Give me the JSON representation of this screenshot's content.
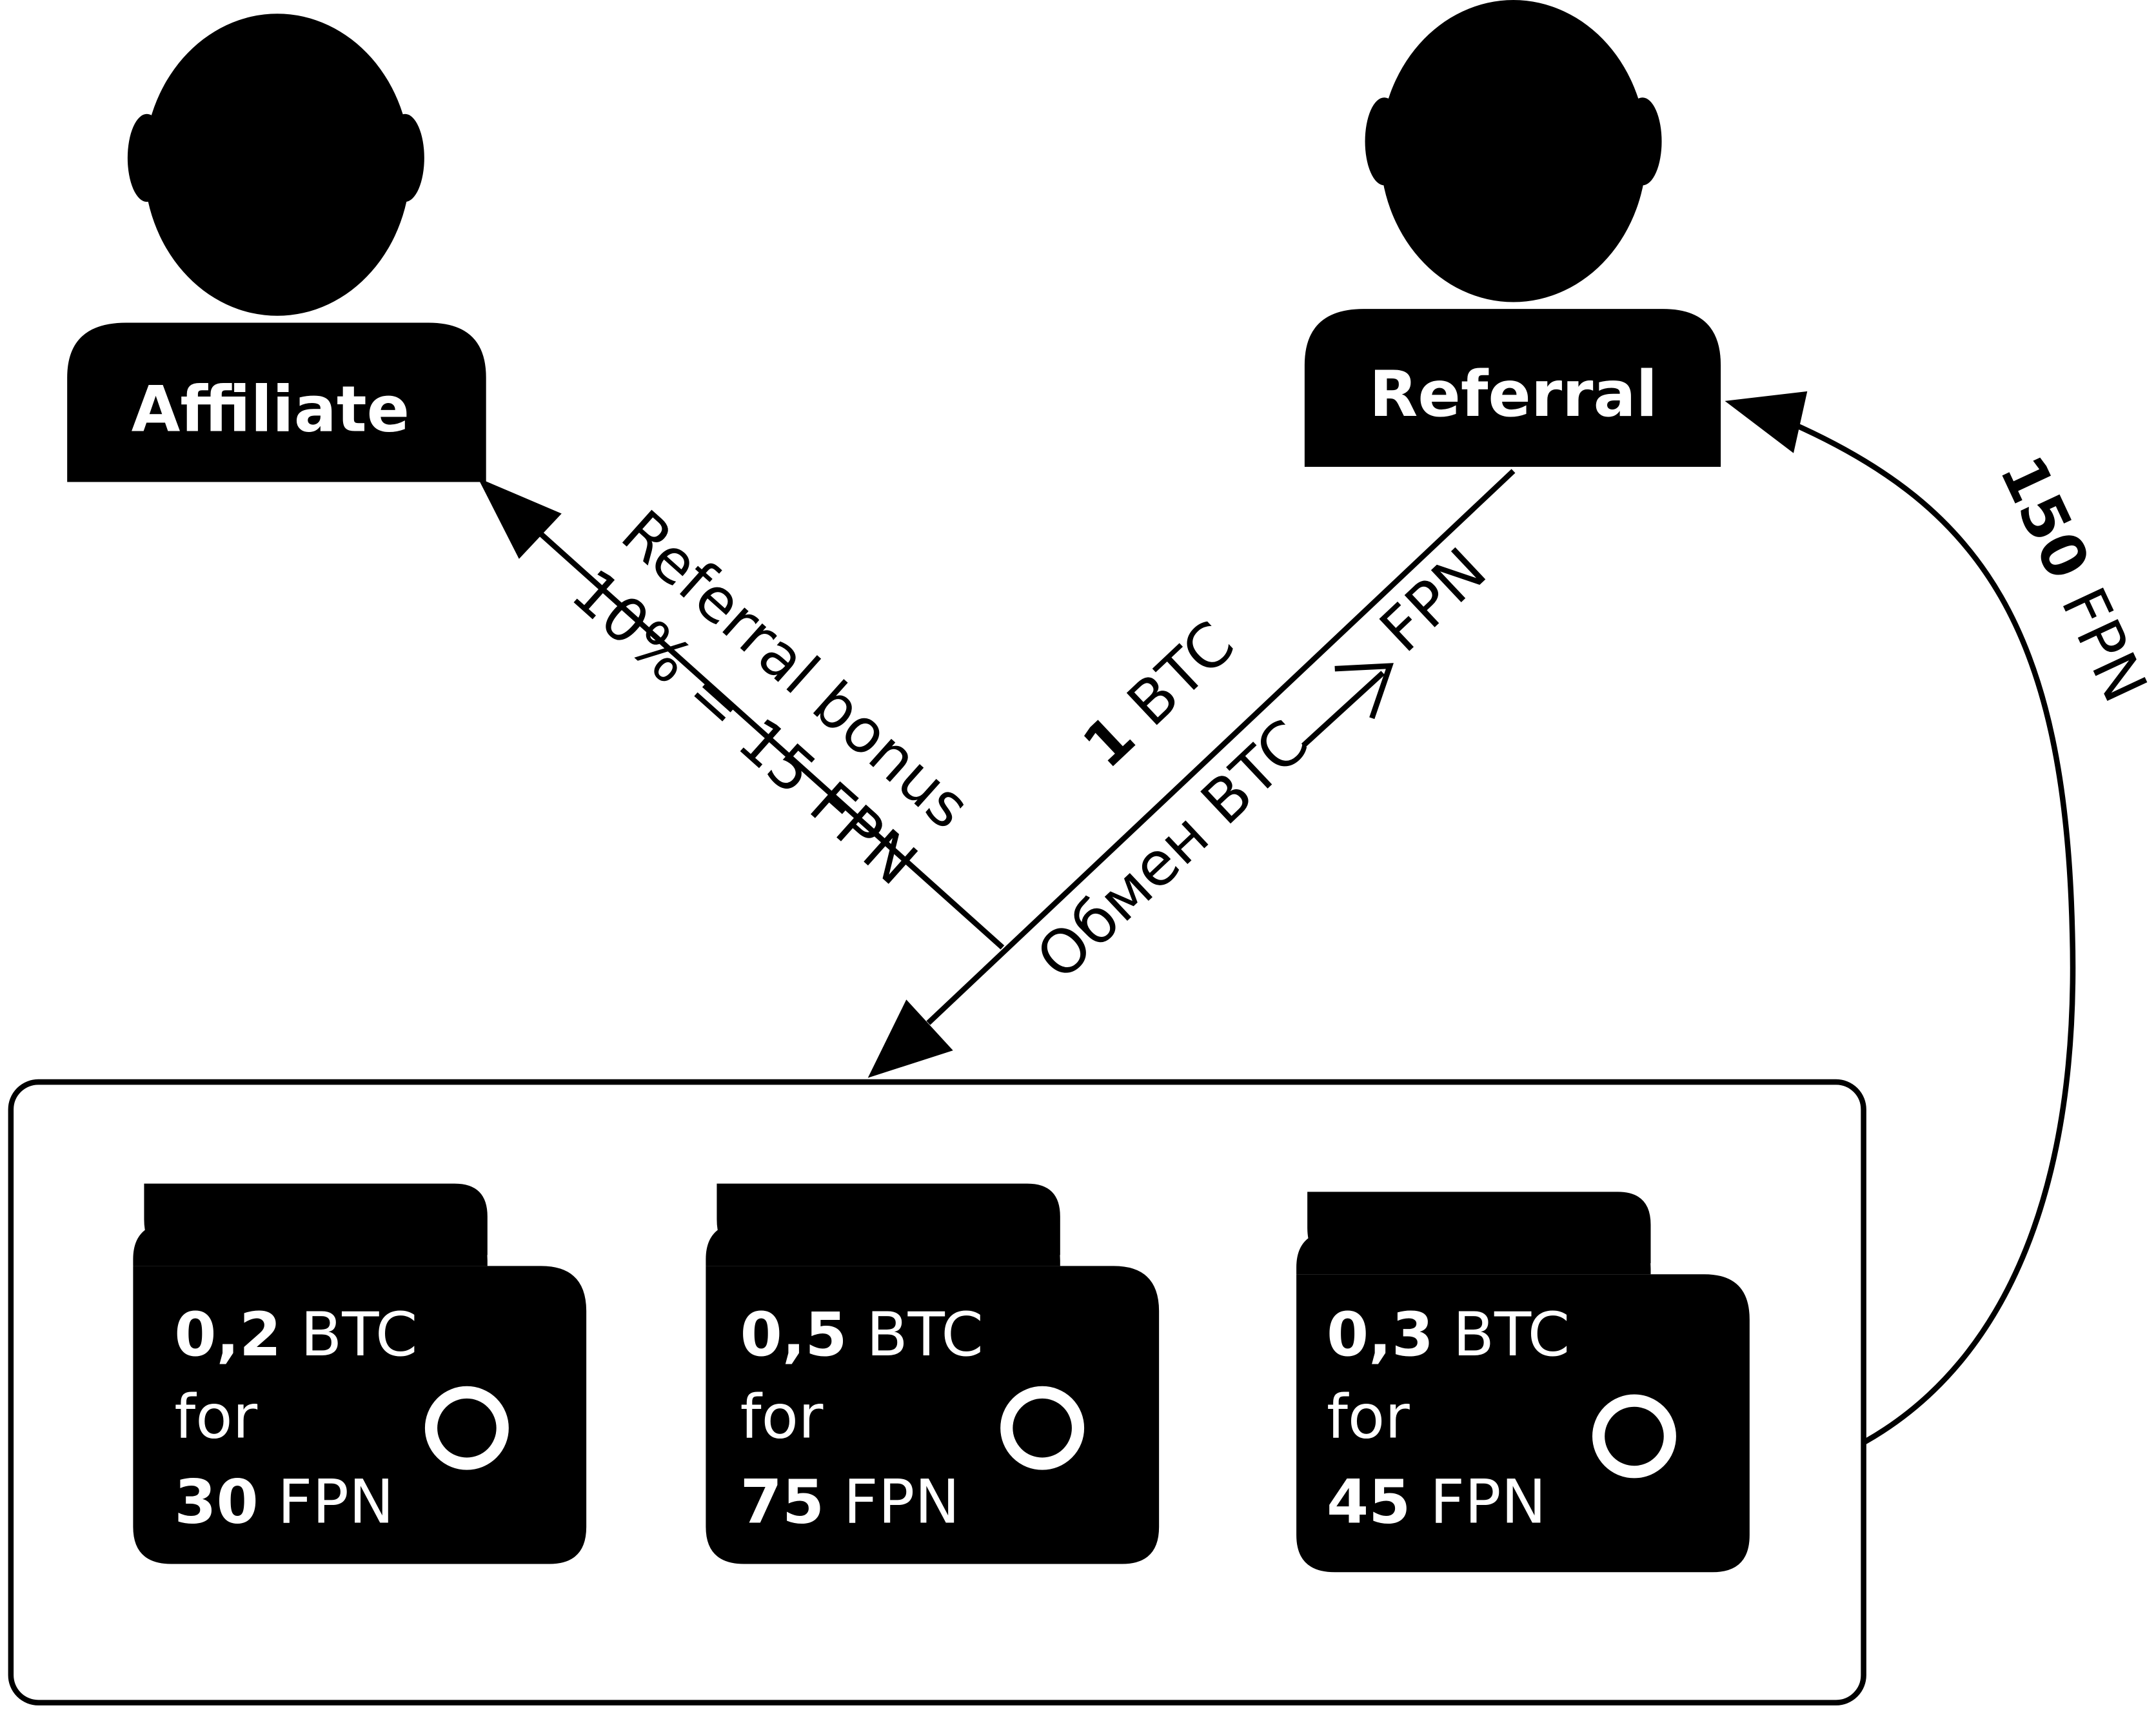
{
  "actors": {
    "affiliate": {
      "label": "Affiliate"
    },
    "referral": {
      "label": "Referral"
    }
  },
  "arrows": {
    "bonus": {
      "line1": "Referral bonus",
      "line2": "10% = 15 FPN"
    },
    "payment": {
      "amount": "1",
      "currency": "BTC",
      "exchange_prefix": "Обмен BTC",
      "exchange_suffix": "FPN"
    },
    "payout": {
      "amount": "150",
      "currency": "FPN"
    }
  },
  "wallets": [
    {
      "btc_amount": "0,2",
      "btc_unit": "BTC",
      "for_label": "for",
      "fpn_amount": "30",
      "fpn_unit": "FPN"
    },
    {
      "btc_amount": "0,5",
      "btc_unit": "BTC",
      "for_label": "for",
      "fpn_amount": "75",
      "fpn_unit": "FPN"
    },
    {
      "btc_amount": "0,3",
      "btc_unit": "BTC",
      "for_label": "for",
      "fpn_amount": "45",
      "fpn_unit": "FPN"
    }
  ],
  "colors": {
    "ink": "#000000",
    "paper": "#ffffff"
  }
}
